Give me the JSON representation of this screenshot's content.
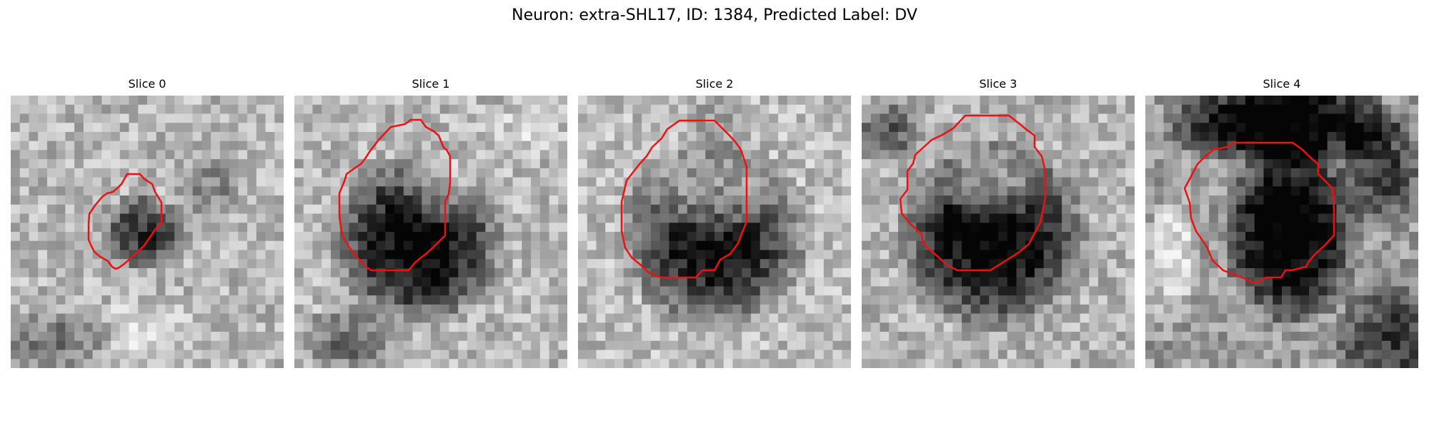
{
  "figure": {
    "title": "Neuron: extra-SHL17, ID: 1384, Predicted Label: DV"
  },
  "slices": [
    {
      "title": "Slice 0"
    },
    {
      "title": "Slice 1"
    },
    {
      "title": "Slice 2"
    },
    {
      "title": "Slice 3"
    },
    {
      "title": "Slice 4"
    }
  ],
  "colors": {
    "contour": "#ee1111",
    "background": "#ffffff"
  }
}
